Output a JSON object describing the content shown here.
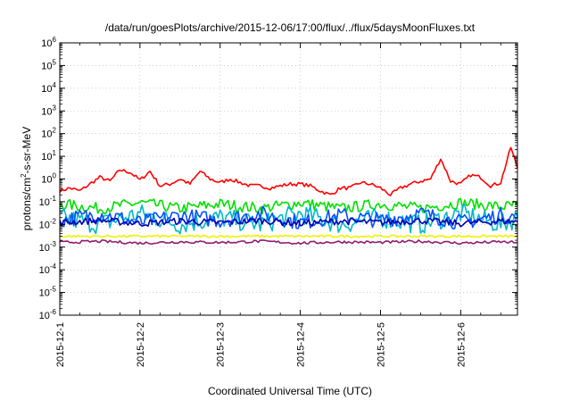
{
  "chart_data": {
    "type": "line",
    "title": "/data/run/goesPlots/archive/2015-12-06/17:00/flux/../flux/5daysMoonFluxes.txt",
    "xlabel": "Coordinated Universal Time (UTC)",
    "ylabel": "protons/cm²-s-sr-MeV",
    "ylabel_parts": {
      "pre": "protons/cm",
      "sup": "2",
      "post": "-s-sr-MeV"
    },
    "yscale": "log",
    "ylim": [
      1e-06,
      1000000.0
    ],
    "xlim": [
      "2015-12-01",
      "2015-12-06 17:00"
    ],
    "x_ticks": [
      "2015-12-1",
      "2015-12-2",
      "2015-12-3",
      "2015-12-4",
      "2015-12-5",
      "2015-12-6"
    ],
    "y_ticks": [
      {
        "base": "10",
        "exp": "-6"
      },
      {
        "base": "10",
        "exp": "-5"
      },
      {
        "base": "10",
        "exp": "-4"
      },
      {
        "base": "10",
        "exp": "-3"
      },
      {
        "base": "10",
        "exp": "-2"
      },
      {
        "base": "10",
        "exp": "-1"
      },
      {
        "base": "10",
        "exp": "0"
      },
      {
        "base": "10",
        "exp": "1"
      },
      {
        "base": "10",
        "exp": "2"
      },
      {
        "base": "10",
        "exp": "3"
      },
      {
        "base": "10",
        "exp": "4"
      },
      {
        "base": "10",
        "exp": "5"
      },
      {
        "base": "10",
        "exp": "6"
      }
    ],
    "grid": true,
    "series": [
      {
        "color": "#ff0000",
        "x": [
          "2015-12-01 00:00",
          "2015-12-01 03:00",
          "2015-12-01 06:00",
          "2015-12-01 09:00",
          "2015-12-01 12:00",
          "2015-12-01 15:00",
          "2015-12-01 18:00",
          "2015-12-01 21:00",
          "2015-12-02 00:00",
          "2015-12-02 03:00",
          "2015-12-02 06:00",
          "2015-12-02 09:00",
          "2015-12-02 12:00",
          "2015-12-02 15:00",
          "2015-12-02 18:00",
          "2015-12-02 21:00",
          "2015-12-03 00:00",
          "2015-12-03 03:00",
          "2015-12-03 06:00",
          "2015-12-03 09:00",
          "2015-12-03 12:00",
          "2015-12-03 15:00",
          "2015-12-03 18:00",
          "2015-12-03 21:00",
          "2015-12-04 00:00",
          "2015-12-04 03:00",
          "2015-12-04 06:00",
          "2015-12-04 09:00",
          "2015-12-04 12:00",
          "2015-12-04 15:00",
          "2015-12-04 18:00",
          "2015-12-04 21:00",
          "2015-12-05 00:00",
          "2015-12-05 03:00",
          "2015-12-05 06:00",
          "2015-12-05 09:00",
          "2015-12-05 12:00",
          "2015-12-05 15:00",
          "2015-12-05 18:00",
          "2015-12-05 21:00",
          "2015-12-06 00:00",
          "2015-12-06 03:00",
          "2015-12-06 06:00",
          "2015-12-06 09:00",
          "2015-12-06 12:00",
          "2015-12-06 15:00",
          "2015-12-06 17:00"
        ],
        "y": [
          0.3,
          0.4,
          0.3,
          0.6,
          1.2,
          0.8,
          2.5,
          2.0,
          0.9,
          2.2,
          0.5,
          0.6,
          1.0,
          0.6,
          2.2,
          1.0,
          0.7,
          1.0,
          0.7,
          0.5,
          0.5,
          0.4,
          0.5,
          0.6,
          0.6,
          0.5,
          0.3,
          0.2,
          0.4,
          0.4,
          0.7,
          0.6,
          0.4,
          0.2,
          0.4,
          0.6,
          0.8,
          1.0,
          8.0,
          0.8,
          0.6,
          1.5,
          1.2,
          0.5,
          0.7,
          25,
          3.0
        ]
      },
      {
        "color": "#00e000",
        "x": [
          "2015-12-01 00:00",
          "2015-12-01 12:00",
          "2015-12-02 00:00",
          "2015-12-02 12:00",
          "2015-12-03 00:00",
          "2015-12-03 12:00",
          "2015-12-04 00:00",
          "2015-12-04 12:00",
          "2015-12-05 00:00",
          "2015-12-05 12:00",
          "2015-12-06 00:00",
          "2015-12-06 12:00",
          "2015-12-06 17:00"
        ],
        "y": [
          0.08,
          0.05,
          0.09,
          0.05,
          0.08,
          0.05,
          0.09,
          0.05,
          0.08,
          0.05,
          0.09,
          0.06,
          0.07
        ]
      },
      {
        "color": "#00b8c8",
        "x": [
          "2015-12-01 00:00",
          "2015-12-01 12:00",
          "2015-12-02 00:00",
          "2015-12-02 12:00",
          "2015-12-03 00:00",
          "2015-12-03 12:00",
          "2015-12-04 00:00",
          "2015-12-04 12:00",
          "2015-12-05 00:00",
          "2015-12-05 12:00",
          "2015-12-06 00:00",
          "2015-12-06 12:00",
          "2015-12-06 17:00"
        ],
        "y": [
          0.02,
          0.01,
          0.03,
          0.01,
          0.02,
          0.01,
          0.03,
          0.01,
          0.02,
          0.01,
          0.03,
          0.01,
          0.02
        ]
      },
      {
        "color": "#0050ff",
        "x": [
          "2015-12-01 00:00",
          "2015-12-01 12:00",
          "2015-12-02 00:00",
          "2015-12-02 12:00",
          "2015-12-03 00:00",
          "2015-12-03 12:00",
          "2015-12-04 00:00",
          "2015-12-04 12:00",
          "2015-12-05 00:00",
          "2015-12-05 12:00",
          "2015-12-06 00:00",
          "2015-12-06 12:00",
          "2015-12-06 17:00"
        ],
        "y": [
          0.015,
          0.03,
          0.012,
          0.025,
          0.015,
          0.03,
          0.012,
          0.025,
          0.015,
          0.03,
          0.012,
          0.025,
          0.02
        ]
      },
      {
        "color": "#0000b0",
        "x": [
          "2015-12-01 00:00",
          "2015-12-01 12:00",
          "2015-12-02 00:00",
          "2015-12-02 12:00",
          "2015-12-03 00:00",
          "2015-12-03 12:00",
          "2015-12-04 00:00",
          "2015-12-04 12:00",
          "2015-12-05 00:00",
          "2015-12-05 12:00",
          "2015-12-06 00:00",
          "2015-12-06 12:00",
          "2015-12-06 17:00"
        ],
        "y": [
          0.012,
          0.015,
          0.011,
          0.014,
          0.012,
          0.015,
          0.011,
          0.014,
          0.012,
          0.015,
          0.011,
          0.014,
          0.013
        ]
      },
      {
        "color": "#f0f000",
        "x": [
          "2015-12-01 00:00",
          "2015-12-01 12:00",
          "2015-12-02 00:00",
          "2015-12-02 12:00",
          "2015-12-03 00:00",
          "2015-12-03 12:00",
          "2015-12-04 00:00",
          "2015-12-04 12:00",
          "2015-12-05 00:00",
          "2015-12-05 12:00",
          "2015-12-06 00:00",
          "2015-12-06 12:00",
          "2015-12-06 17:00"
        ],
        "y": [
          0.003,
          0.003,
          0.003,
          0.003,
          0.003,
          0.003,
          0.003,
          0.003,
          0.003,
          0.003,
          0.003,
          0.003,
          0.003
        ]
      },
      {
        "color": "#901a6e",
        "x": [
          "2015-12-01 00:00",
          "2015-12-01 12:00",
          "2015-12-02 00:00",
          "2015-12-02 12:00",
          "2015-12-03 00:00",
          "2015-12-03 12:00",
          "2015-12-04 00:00",
          "2015-12-04 12:00",
          "2015-12-05 00:00",
          "2015-12-05 12:00",
          "2015-12-06 00:00",
          "2015-12-06 12:00",
          "2015-12-06 17:00"
        ],
        "y": [
          0.0016,
          0.0018,
          0.0015,
          0.0017,
          0.0016,
          0.0018,
          0.0015,
          0.0017,
          0.0016,
          0.0018,
          0.0015,
          0.0017,
          0.0016
        ]
      }
    ]
  }
}
